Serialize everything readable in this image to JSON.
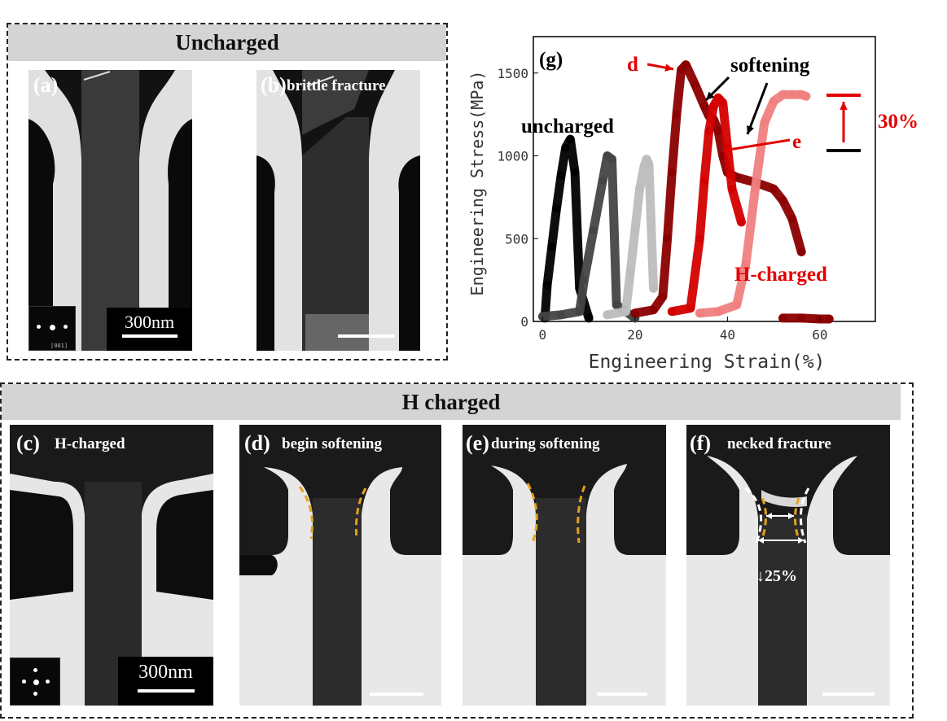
{
  "groups": {
    "uncharged": {
      "title": "Uncharged"
    },
    "charged": {
      "title": "H charged"
    }
  },
  "panels": {
    "a": {
      "letter": "(a)",
      "scale": "300nm",
      "inset_label": "[001]"
    },
    "b": {
      "letter": "(b)",
      "caption": "brittle fracture"
    },
    "c": {
      "letter": "(c)",
      "caption": "H-charged",
      "scale": "300nm"
    },
    "d": {
      "letter": "(d)",
      "caption": "begin softening"
    },
    "e": {
      "letter": "(e)",
      "caption": "during softening"
    },
    "f": {
      "letter": "(f)",
      "caption": "necked fracture",
      "reduction": "↓25%"
    }
  },
  "chart_data": {
    "type": "scatter",
    "panel_label": "(g)",
    "xlabel": "Engineering Strain(%)",
    "ylabel": "Engineering Stress(MPa)",
    "xlim": [
      -2,
      72
    ],
    "ylim": [
      0,
      1720
    ],
    "xticks": [
      0,
      20,
      40,
      60
    ],
    "yticks": [
      0,
      500,
      1000,
      1500
    ],
    "grid": false,
    "annotations": {
      "uncharged": "uncharged",
      "h_charged": "H-charged",
      "softening": "softening",
      "d": "d",
      "e": "e",
      "increase": "30%"
    },
    "colors": {
      "uncharged_1": "#000000",
      "uncharged_2": "#444444",
      "uncharged_3": "#bdbdbd",
      "charged_1": "#8b0000",
      "charged_2": "#d40000",
      "charged_3": "#f08080",
      "annotation_red": "#e30000"
    },
    "series": [
      {
        "color_key": "uncharged_1",
        "x": [
          0.5,
          1,
          2,
          3,
          4,
          5,
          6,
          7,
          8,
          10
        ],
        "y": [
          20,
          220,
          450,
          680,
          880,
          1050,
          1100,
          900,
          200,
          20
        ]
      },
      {
        "color_key": "uncharged_2",
        "x": [
          0,
          4,
          8,
          9,
          11,
          13,
          14,
          15,
          16,
          20
        ],
        "y": [
          30,
          40,
          60,
          250,
          550,
          850,
          1000,
          980,
          100,
          20
        ]
      },
      {
        "color_key": "uncharged_3",
        "x": [
          14,
          18,
          19,
          20,
          21,
          22,
          22.5,
          23,
          24
        ],
        "y": [
          40,
          60,
          300,
          550,
          800,
          940,
          980,
          950,
          200
        ]
      },
      {
        "color_key": "charged_1",
        "x": [
          20,
          24,
          26,
          27,
          28,
          29,
          30,
          31,
          33,
          35,
          36,
          37,
          38,
          39,
          40,
          42,
          46,
          50,
          52,
          54,
          56
        ],
        "y": [
          50,
          70,
          150,
          500,
          900,
          1250,
          1520,
          1550,
          1430,
          1300,
          1240,
          1220,
          1150,
          1000,
          900,
          870,
          840,
          800,
          730,
          620,
          420
        ]
      },
      {
        "color_key": "charged_2",
        "x": [
          28,
          32,
          34,
          35,
          36,
          37,
          38,
          39,
          40,
          41,
          43
        ],
        "y": [
          60,
          80,
          500,
          850,
          1150,
          1300,
          1350,
          1320,
          1050,
          800,
          600
        ]
      },
      {
        "color_key": "charged_3",
        "x": [
          34,
          38,
          42,
          44,
          46,
          48,
          50,
          52,
          54,
          56,
          57
        ],
        "y": [
          50,
          60,
          100,
          350,
          800,
          1200,
          1330,
          1370,
          1370,
          1370,
          1360
        ]
      },
      {
        "color_key": "charged_1",
        "x": [
          52,
          56,
          60,
          62
        ],
        "y": [
          20,
          20,
          15,
          15
        ]
      }
    ]
  }
}
